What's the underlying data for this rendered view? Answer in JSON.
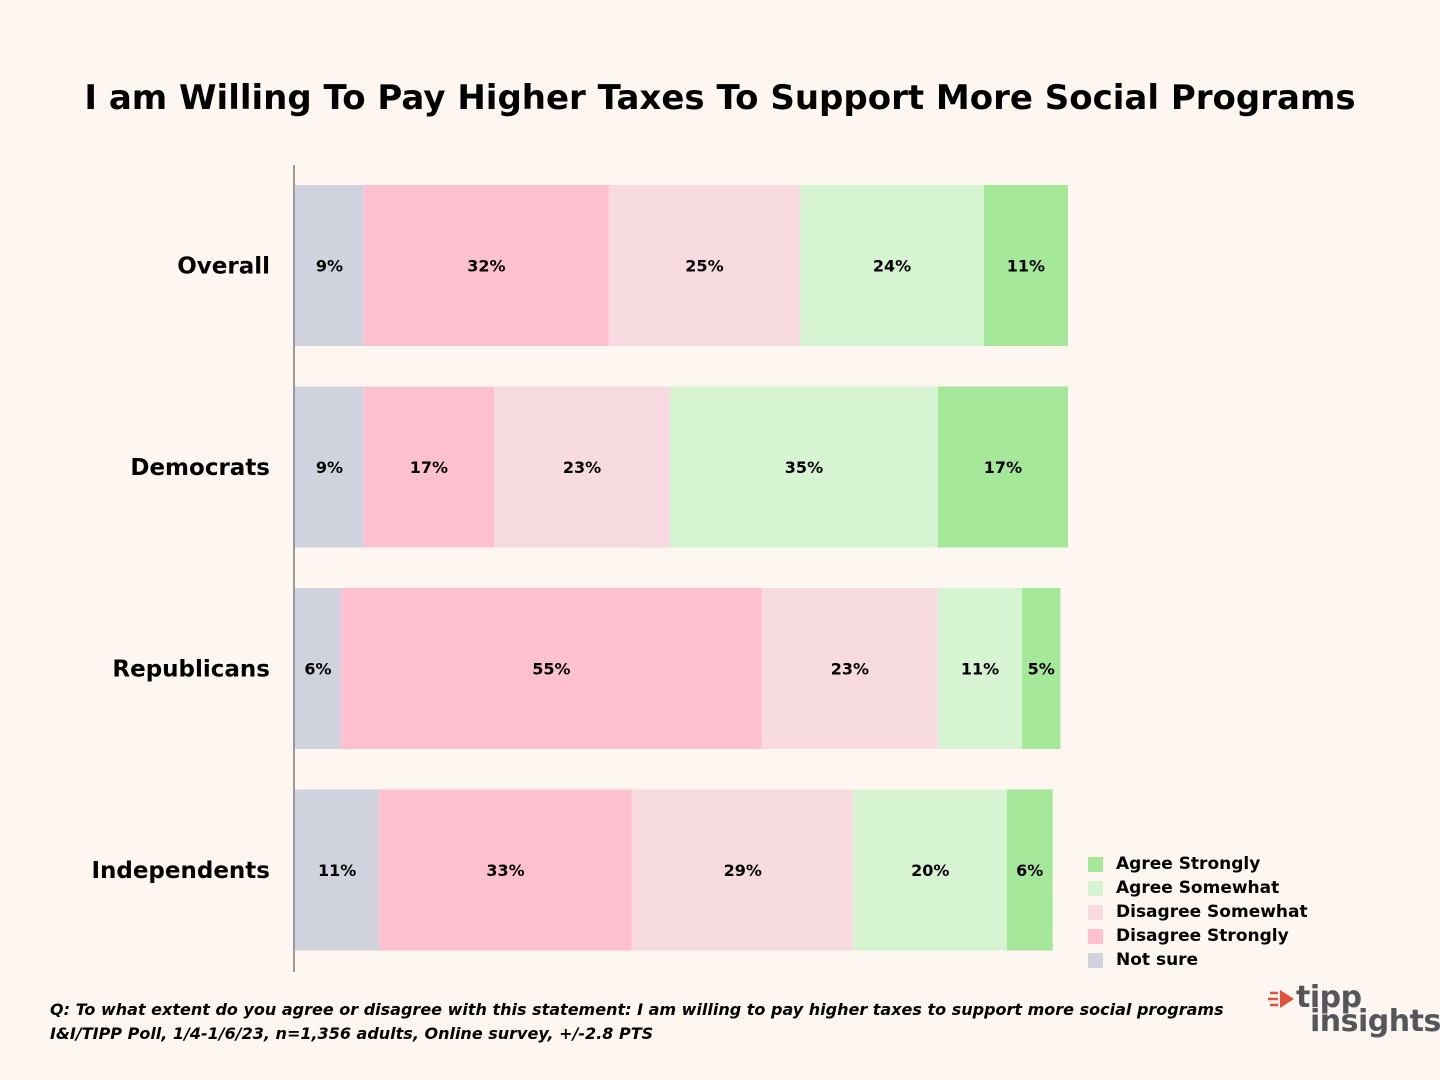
{
  "chart_data": {
    "type": "bar",
    "orientation": "horizontal",
    "stacked": true,
    "title": "I am Willing To Pay Higher Taxes To Support More Social Programs",
    "categories": [
      "Overall",
      "Democrats",
      "Republicans",
      "Independents"
    ],
    "series": [
      {
        "name": "Not sure",
        "color": "#d0d3de",
        "values": [
          9,
          9,
          6,
          11
        ]
      },
      {
        "name": "Disagree Strongly",
        "color": "#ffc0cf",
        "values": [
          32,
          17,
          55,
          33
        ]
      },
      {
        "name": "Disagree Somewhat",
        "color": "#f7dbe1",
        "values": [
          25,
          23,
          23,
          29
        ]
      },
      {
        "name": "Agree Somewhat",
        "color": "#d6f4d2",
        "values": [
          24,
          35,
          11,
          20
        ]
      },
      {
        "name": "Agree Strongly",
        "color": "#a5e89a",
        "values": [
          11,
          17,
          5,
          6
        ]
      }
    ],
    "legend_order": [
      "Agree Strongly",
      "Agree Somewhat",
      "Disagree Somewhat",
      "Disagree Strongly",
      "Not sure"
    ],
    "legend_position": "bottom-right",
    "xlim": [
      0,
      101
    ],
    "value_suffix": "%",
    "grid": false
  },
  "footnote": {
    "question": "Q: To what extent do you agree or disagree with this statement: I am willing to pay higher taxes to support more social programs",
    "source": "I&I/TIPP Poll, 1/4-1/6/23, n=1,356 adults, Online survey, +/-2.8 PTS"
  },
  "logo": {
    "line1": "tipp",
    "line2": "insights"
  }
}
